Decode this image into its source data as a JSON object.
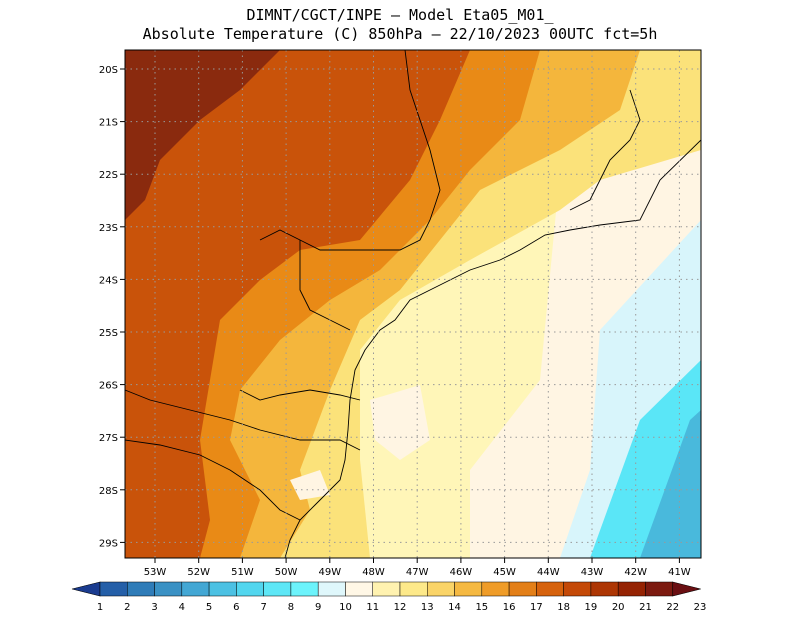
{
  "header": {
    "title_line1": "DIMNT/CGCT/INPE –  Model Eta05_M01_",
    "title_line2": "Absolute Temperature (C) 850hPa –  22/10/2023 00UTC fct=5h"
  },
  "map": {
    "lat_labels": [
      "20S",
      "21S",
      "22S",
      "23S",
      "24S",
      "25S",
      "26S",
      "27S",
      "28S",
      "29S"
    ],
    "lon_labels": [
      "53W",
      "52W",
      "51W",
      "50W",
      "49W",
      "48W",
      "47W",
      "46W",
      "45W",
      "44W",
      "43W",
      "42W",
      "41W"
    ],
    "gridlines": "dotted gray"
  },
  "colorbar": {
    "labels": [
      "1",
      "2",
      "3",
      "4",
      "5",
      "6",
      "7",
      "8",
      "9",
      "10",
      "11",
      "12",
      "13",
      "14",
      "15",
      "16",
      "17",
      "18",
      "19",
      "20",
      "21",
      "22",
      "23"
    ],
    "colors": [
      "#1a3b8f",
      "#245fa8",
      "#2f7cb8",
      "#3a91c4",
      "#43a7d4",
      "#4cc1e3",
      "#52d6ee",
      "#5ee7f6",
      "#6cf3fb",
      "#dff7fb",
      "#fff7e6",
      "#fff2b0",
      "#fde98a",
      "#fad468",
      "#f5b942",
      "#ef9c28",
      "#e37f18",
      "#d6620d",
      "#c44907",
      "#ad3604",
      "#952303",
      "#7c1a10",
      "#6a0f12"
    ]
  },
  "regions": {
    "hot_west": "#8a2a0e",
    "warm": "#c9530a",
    "orange": "#e98a16",
    "gold": "#f4b63c",
    "yellow": "#fbe27a",
    "pale_yellow": "#fff6b8",
    "cream": "#fff5e3",
    "light_cyan": "#d8f5fb",
    "cyan": "#5ae6f7",
    "blue": "#49b9dc"
  }
}
